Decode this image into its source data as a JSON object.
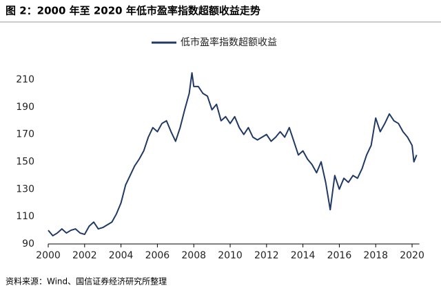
{
  "chart_data": {
    "type": "line",
    "title": "图 2：2000 年至 2020 年低市盈率指数超额收益走势",
    "source": "资料来源：Wind、国信证券经济研究所整理",
    "x": [
      2000,
      2000.25,
      2000.5,
      2000.75,
      2001,
      2001.25,
      2001.5,
      2001.75,
      2002,
      2002.25,
      2002.5,
      2002.75,
      2003,
      2003.25,
      2003.5,
      2003.75,
      2004,
      2004.25,
      2004.5,
      2004.75,
      2005,
      2005.25,
      2005.5,
      2005.75,
      2006,
      2006.25,
      2006.5,
      2006.75,
      2007,
      2007.25,
      2007.5,
      2007.75,
      2007.9,
      2008,
      2008.25,
      2008.5,
      2008.75,
      2009,
      2009.25,
      2009.5,
      2009.75,
      2010,
      2010.25,
      2010.5,
      2010.75,
      2011,
      2011.25,
      2011.5,
      2011.75,
      2012,
      2012.25,
      2012.5,
      2012.75,
      2013,
      2013.25,
      2013.5,
      2013.75,
      2014,
      2014.25,
      2014.5,
      2014.75,
      2015,
      2015.25,
      2015.5,
      2015.75,
      2016,
      2016.25,
      2016.5,
      2016.75,
      2017,
      2017.25,
      2017.5,
      2017.75,
      2018,
      2018.25,
      2018.5,
      2018.75,
      2019,
      2019.25,
      2019.5,
      2019.75,
      2020,
      2020.1,
      2020.25
    ],
    "series": [
      {
        "name": "低市盈率指数超额收益",
        "color": "#1f3864",
        "values": [
          100,
          96,
          98,
          101,
          98,
          100,
          101,
          98,
          97,
          103,
          106,
          101,
          102,
          104,
          106,
          112,
          120,
          133,
          140,
          147,
          152,
          158,
          168,
          175,
          172,
          178,
          180,
          172,
          165,
          175,
          188,
          200,
          215,
          205,
          205,
          200,
          198,
          188,
          192,
          180,
          183,
          178,
          183,
          175,
          170,
          175,
          168,
          166,
          168,
          170,
          165,
          168,
          172,
          168,
          175,
          165,
          155,
          158,
          152,
          148,
          142,
          150,
          135,
          115,
          140,
          130,
          138,
          135,
          140,
          138,
          145,
          155,
          162,
          182,
          172,
          178,
          185,
          180,
          178,
          172,
          168,
          162,
          150,
          155
        ]
      }
    ],
    "xlim": [
      2000,
      2020.4
    ],
    "xticks": [
      2000,
      2002,
      2004,
      2006,
      2008,
      2010,
      2012,
      2014,
      2016,
      2018,
      2020
    ],
    "ylim": [
      90,
      215
    ],
    "yticks": [
      90,
      110,
      130,
      150,
      170,
      190,
      210
    ],
    "grid": false,
    "legend": "top"
  }
}
